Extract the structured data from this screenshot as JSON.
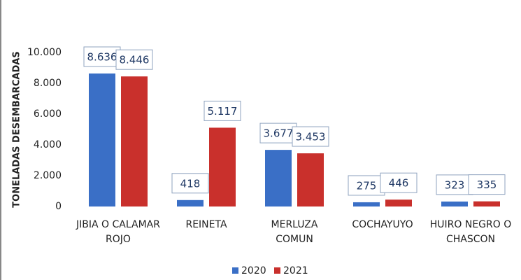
{
  "chart_data": {
    "type": "bar",
    "y_label": "TONELADAS DESEMBARCADAS",
    "categories": [
      "JIBIA O CALAMAR ROJO",
      "REINETA",
      "MERLUZA COMUN",
      "COCHAYUYO",
      "HUIRO NEGRO O CHASCON"
    ],
    "series": [
      {
        "name": "2020",
        "color": "#3a6fc6",
        "values": [
          8636,
          418,
          3677,
          275,
          323
        ],
        "value_labels": [
          "8.636",
          "418",
          "3.677",
          "275",
          "323"
        ]
      },
      {
        "name": "2021",
        "color": "#c9302c",
        "values": [
          8446,
          5117,
          3453,
          446,
          335
        ],
        "value_labels": [
          "8.446",
          "5.117",
          "3.453",
          "446",
          "335"
        ]
      }
    ],
    "ylim": [
      0,
      10000
    ],
    "yticks": [
      0,
      {
        "value": 2000,
        "label": "2.000"
      },
      {
        "value": 4000,
        "label": "4.000"
      },
      {
        "value": 6000,
        "label": "6.000"
      },
      {
        "value": 8000,
        "label": "8.000"
      },
      {
        "value": 10000,
        "label": "10.000"
      }
    ],
    "legend": "bottom"
  }
}
